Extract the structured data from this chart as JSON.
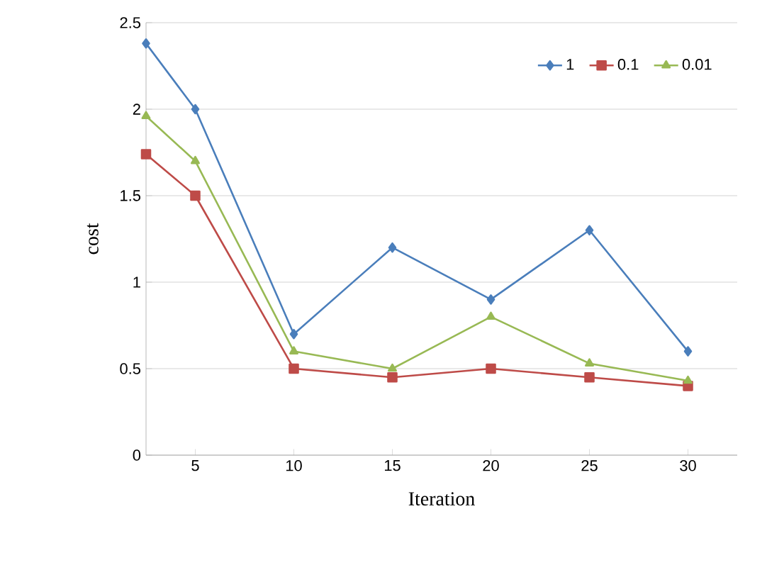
{
  "chart_data": {
    "type": "line",
    "xlabel": "Iteration",
    "ylabel": "cost",
    "x": [
      2.5,
      5,
      10,
      15,
      20,
      25,
      30
    ],
    "series": [
      {
        "name": "1",
        "color": "#4a7ebb",
        "marker": "diamond",
        "values": [
          2.38,
          2.0,
          0.7,
          1.2,
          0.9,
          1.3,
          0.6
        ]
      },
      {
        "name": "0.1",
        "color": "#be4b48",
        "marker": "square",
        "values": [
          1.74,
          1.5,
          0.5,
          0.45,
          0.5,
          0.45,
          0.4
        ]
      },
      {
        "name": "0.01",
        "color": "#98b954",
        "marker": "triangle",
        "values": [
          1.96,
          1.7,
          0.6,
          0.5,
          0.8,
          0.53,
          0.43
        ]
      }
    ],
    "xlim": [
      2.5,
      32.5
    ],
    "xticks": [
      5,
      10,
      15,
      20,
      25,
      30
    ],
    "ylim": [
      0,
      2.5
    ],
    "yticks": [
      0,
      0.5,
      1,
      1.5,
      2,
      2.5
    ],
    "grid": "y",
    "legend": "top right",
    "line_style": "solid"
  }
}
